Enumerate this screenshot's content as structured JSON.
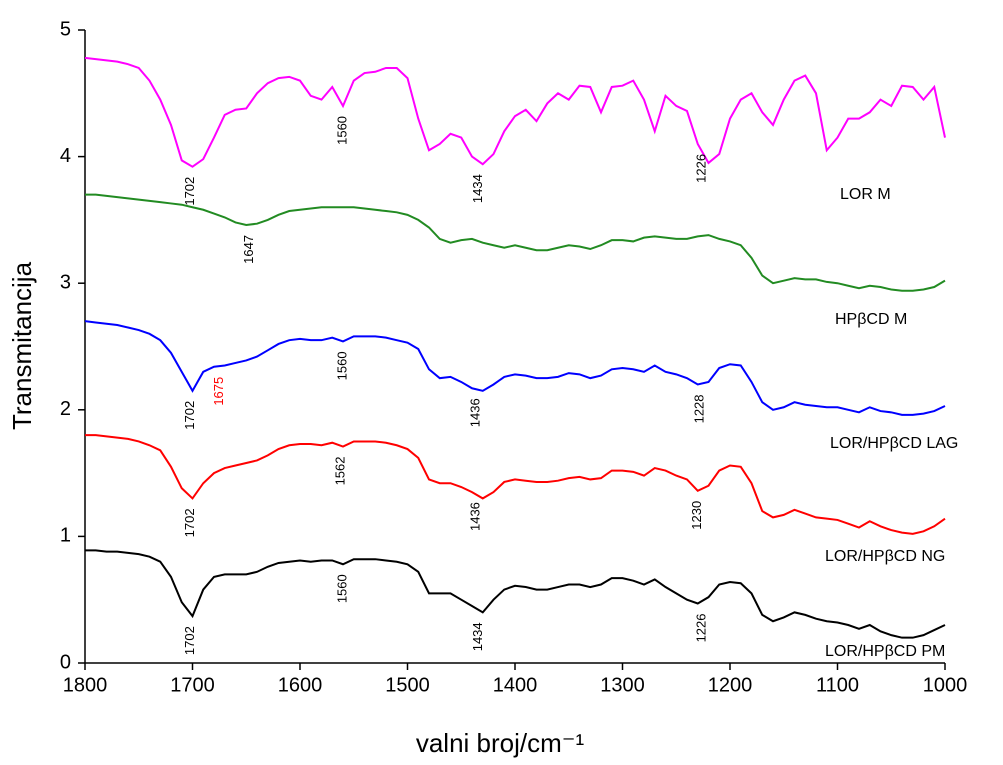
{
  "chart_data": {
    "type": "line",
    "x_label": "valni broj/cm⁻¹",
    "y_label": "Transmitancija",
    "xlim": [
      1800,
      1000
    ],
    "ylim": [
      0,
      5
    ],
    "xticks": [
      1800,
      1700,
      1600,
      1500,
      1400,
      1300,
      1200,
      1100,
      1000
    ],
    "yticks": [
      0,
      1,
      2,
      3,
      4,
      5
    ],
    "x": [
      1800,
      1790,
      1780,
      1770,
      1760,
      1750,
      1740,
      1730,
      1720,
      1710,
      1700,
      1690,
      1680,
      1670,
      1660,
      1650,
      1640,
      1630,
      1620,
      1610,
      1600,
      1590,
      1580,
      1570,
      1560,
      1550,
      1540,
      1530,
      1520,
      1510,
      1500,
      1490,
      1480,
      1470,
      1460,
      1450,
      1440,
      1430,
      1420,
      1410,
      1400,
      1390,
      1380,
      1370,
      1360,
      1350,
      1340,
      1330,
      1320,
      1310,
      1300,
      1290,
      1280,
      1270,
      1260,
      1250,
      1240,
      1230,
      1220,
      1210,
      1200,
      1190,
      1180,
      1170,
      1160,
      1150,
      1140,
      1130,
      1120,
      1110,
      1100,
      1090,
      1080,
      1070,
      1060,
      1050,
      1040,
      1030,
      1020,
      1010,
      1000
    ],
    "series": [
      {
        "name": "LOR M",
        "color": "#ff00ff",
        "values": [
          4.78,
          4.77,
          4.76,
          4.75,
          4.73,
          4.7,
          4.6,
          4.45,
          4.25,
          3.97,
          3.92,
          3.98,
          4.15,
          4.33,
          4.37,
          4.38,
          4.5,
          4.58,
          4.62,
          4.63,
          4.6,
          4.48,
          4.45,
          4.55,
          4.4,
          4.6,
          4.66,
          4.67,
          4.7,
          4.7,
          4.62,
          4.3,
          4.05,
          4.1,
          4.18,
          4.15,
          4.0,
          3.94,
          4.02,
          4.2,
          4.32,
          4.37,
          4.28,
          4.42,
          4.5,
          4.45,
          4.56,
          4.55,
          4.35,
          4.55,
          4.56,
          4.6,
          4.45,
          4.2,
          4.48,
          4.4,
          4.36,
          4.1,
          3.95,
          4.02,
          4.3,
          4.45,
          4.5,
          4.35,
          4.25,
          4.45,
          4.6,
          4.64,
          4.5,
          4.05,
          4.15,
          4.3,
          4.3,
          4.35,
          4.45,
          4.4,
          4.56,
          4.55,
          4.45,
          4.55,
          4.15
        ]
      },
      {
        "name": "HPβCD M",
        "color": "#228b22",
        "values": [
          3.7,
          3.7,
          3.69,
          3.68,
          3.67,
          3.66,
          3.65,
          3.64,
          3.63,
          3.62,
          3.6,
          3.58,
          3.55,
          3.52,
          3.48,
          3.46,
          3.47,
          3.5,
          3.54,
          3.57,
          3.58,
          3.59,
          3.6,
          3.6,
          3.6,
          3.6,
          3.59,
          3.58,
          3.57,
          3.56,
          3.54,
          3.5,
          3.44,
          3.35,
          3.32,
          3.34,
          3.35,
          3.32,
          3.3,
          3.28,
          3.3,
          3.28,
          3.26,
          3.26,
          3.28,
          3.3,
          3.29,
          3.27,
          3.3,
          3.34,
          3.34,
          3.33,
          3.36,
          3.37,
          3.36,
          3.35,
          3.35,
          3.37,
          3.38,
          3.35,
          3.33,
          3.3,
          3.2,
          3.06,
          3.0,
          3.02,
          3.04,
          3.03,
          3.03,
          3.01,
          3.0,
          2.98,
          2.96,
          2.98,
          2.97,
          2.95,
          2.94,
          2.94,
          2.95,
          2.97,
          3.02
        ]
      },
      {
        "name": "LOR/HPβCD LAG",
        "color": "#0000ff",
        "values": [
          2.7,
          2.69,
          2.68,
          2.67,
          2.65,
          2.63,
          2.6,
          2.55,
          2.45,
          2.3,
          2.15,
          2.3,
          2.34,
          2.35,
          2.37,
          2.39,
          2.42,
          2.47,
          2.52,
          2.55,
          2.56,
          2.55,
          2.55,
          2.57,
          2.54,
          2.58,
          2.58,
          2.58,
          2.57,
          2.55,
          2.53,
          2.48,
          2.32,
          2.25,
          2.26,
          2.22,
          2.17,
          2.15,
          2.2,
          2.26,
          2.28,
          2.27,
          2.25,
          2.25,
          2.26,
          2.29,
          2.28,
          2.25,
          2.27,
          2.32,
          2.33,
          2.32,
          2.3,
          2.35,
          2.3,
          2.28,
          2.25,
          2.2,
          2.22,
          2.33,
          2.36,
          2.35,
          2.22,
          2.06,
          2.0,
          2.02,
          2.06,
          2.04,
          2.03,
          2.02,
          2.02,
          2.0,
          1.98,
          2.02,
          1.99,
          1.98,
          1.96,
          1.96,
          1.97,
          1.99,
          2.03
        ]
      },
      {
        "name": "LOR/HPβCD NG",
        "color": "#ff0000",
        "values": [
          1.8,
          1.8,
          1.79,
          1.78,
          1.77,
          1.75,
          1.72,
          1.68,
          1.55,
          1.38,
          1.3,
          1.42,
          1.5,
          1.54,
          1.56,
          1.58,
          1.6,
          1.64,
          1.69,
          1.72,
          1.73,
          1.73,
          1.72,
          1.74,
          1.71,
          1.75,
          1.75,
          1.75,
          1.74,
          1.72,
          1.69,
          1.62,
          1.45,
          1.42,
          1.42,
          1.39,
          1.35,
          1.3,
          1.35,
          1.43,
          1.45,
          1.44,
          1.43,
          1.43,
          1.44,
          1.46,
          1.47,
          1.45,
          1.46,
          1.52,
          1.52,
          1.51,
          1.48,
          1.54,
          1.52,
          1.48,
          1.45,
          1.36,
          1.4,
          1.52,
          1.56,
          1.55,
          1.42,
          1.2,
          1.15,
          1.17,
          1.21,
          1.18,
          1.15,
          1.14,
          1.13,
          1.1,
          1.07,
          1.12,
          1.08,
          1.05,
          1.03,
          1.02,
          1.04,
          1.08,
          1.14
        ]
      },
      {
        "name": "LOR/HPβCD PM",
        "color": "#000000",
        "values": [
          0.89,
          0.89,
          0.88,
          0.88,
          0.87,
          0.86,
          0.84,
          0.8,
          0.68,
          0.48,
          0.37,
          0.58,
          0.68,
          0.7,
          0.7,
          0.7,
          0.72,
          0.76,
          0.79,
          0.8,
          0.81,
          0.8,
          0.81,
          0.81,
          0.78,
          0.82,
          0.82,
          0.82,
          0.81,
          0.8,
          0.78,
          0.72,
          0.55,
          0.55,
          0.55,
          0.5,
          0.45,
          0.4,
          0.5,
          0.58,
          0.61,
          0.6,
          0.58,
          0.58,
          0.6,
          0.62,
          0.62,
          0.6,
          0.62,
          0.67,
          0.67,
          0.65,
          0.62,
          0.66,
          0.6,
          0.55,
          0.5,
          0.47,
          0.52,
          0.62,
          0.64,
          0.63,
          0.55,
          0.38,
          0.33,
          0.36,
          0.4,
          0.38,
          0.35,
          0.33,
          0.32,
          0.3,
          0.27,
          0.3,
          0.25,
          0.22,
          0.2,
          0.2,
          0.22,
          0.26,
          0.3
        ]
      }
    ],
    "annotations": [
      {
        "x": 1702,
        "series": 0
      },
      {
        "x": 1560,
        "series": 0
      },
      {
        "x": 1434,
        "series": 0
      },
      {
        "x": 1226,
        "series": 0
      },
      {
        "x": 1647,
        "series": 1
      },
      {
        "x": 1702,
        "series": 2
      },
      {
        "x": 1675,
        "series": 2,
        "color": "#ff0000"
      },
      {
        "x": 1560,
        "series": 2
      },
      {
        "x": 1436,
        "series": 2
      },
      {
        "x": 1228,
        "series": 2
      },
      {
        "x": 1702,
        "series": 3
      },
      {
        "x": 1562,
        "series": 3
      },
      {
        "x": 1436,
        "series": 3
      },
      {
        "x": 1230,
        "series": 3
      },
      {
        "x": 1702,
        "series": 4
      },
      {
        "x": 1560,
        "series": 4
      },
      {
        "x": 1434,
        "series": 4
      },
      {
        "x": 1226,
        "series": 4
      }
    ]
  }
}
